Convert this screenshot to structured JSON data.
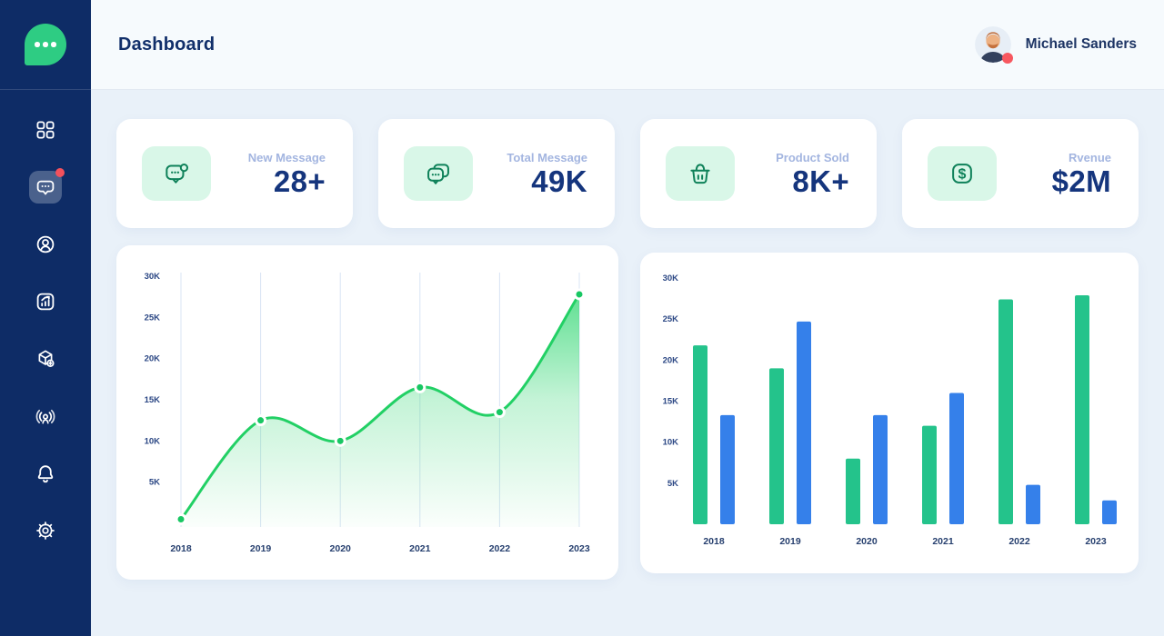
{
  "header": {
    "title": "Dashboard",
    "user": {
      "name": "Michael Sanders",
      "status_color": "#f7575f"
    }
  },
  "sidebar": {
    "logo_icon": "chat-bubble-logo",
    "items": [
      {
        "name": "dashboard",
        "icon": "grid-icon",
        "active": false
      },
      {
        "name": "messages",
        "icon": "chat-icon",
        "active": true,
        "badge": true
      },
      {
        "name": "profile",
        "icon": "user-icon",
        "active": false
      },
      {
        "name": "analytics",
        "icon": "analytics-icon",
        "active": false
      },
      {
        "name": "products",
        "icon": "package-icon",
        "active": false
      },
      {
        "name": "broadcast",
        "icon": "podcast-icon",
        "active": false
      },
      {
        "name": "notifications",
        "icon": "bell-icon",
        "active": false
      },
      {
        "name": "settings",
        "icon": "gear-icon",
        "active": false
      }
    ]
  },
  "stats": [
    {
      "label": "New Message",
      "value": "28+",
      "icon": "new-message-icon"
    },
    {
      "label": "Total Message",
      "value": "49K",
      "icon": "total-message-icon"
    },
    {
      "label": "Product Sold",
      "value": "8K+",
      "icon": "basket-icon"
    },
    {
      "label": "Rvenue",
      "value": "$2M",
      "icon": "dollar-icon"
    }
  ],
  "chart_data": [
    {
      "type": "area",
      "title": "",
      "x": [
        "2018",
        "2019",
        "2020",
        "2021",
        "2022",
        "2023"
      ],
      "values": [
        500,
        12500,
        10000,
        16500,
        13500,
        27800
      ],
      "ylim": [
        0,
        30000
      ],
      "ytick_values": [
        30000,
        25000,
        20000,
        15000,
        10000,
        5000
      ],
      "ytick_labels": [
        "30K",
        "25K",
        "20K",
        "15K",
        "10K",
        "5K"
      ],
      "grid": "vertical-only",
      "legend": "none",
      "line_color": "#22d065",
      "point_color": "#18c763",
      "fill_gradient_top": "#2bd56e"
    },
    {
      "type": "bar",
      "title": "",
      "categories": [
        "2018",
        "2019",
        "2020",
        "2021",
        "2022",
        "2023"
      ],
      "series": [
        {
          "name": "green-series",
          "color": "#24c38b",
          "values": [
            21800,
            19000,
            8000,
            12000,
            27400,
            27900
          ]
        },
        {
          "name": "blue-series",
          "color": "#3580ea",
          "values": [
            13300,
            24700,
            13300,
            16000,
            4800,
            2900
          ]
        }
      ],
      "ylim": [
        0,
        30000
      ],
      "ytick_values": [
        30000,
        25000,
        20000,
        15000,
        10000,
        5000
      ],
      "ytick_labels": [
        "30K",
        "25K",
        "20K",
        "15K",
        "10K",
        "5K"
      ],
      "grid": "off",
      "legend": "none"
    }
  ],
  "colors": {
    "sidebar_bg": "#0e2c66",
    "logo_green": "#2ecc83",
    "badge_red": "#f4515c",
    "header_bg": "#f6fafd",
    "content_bg": "#e9f1f9",
    "card_bg": "#ffffff",
    "stat_label": "#a3b5e0",
    "stat_value": "#15357d",
    "stat_icon_bg": "#d9f7e8",
    "stat_icon_stroke": "#0e8159",
    "axis_text": "#2b4784"
  }
}
